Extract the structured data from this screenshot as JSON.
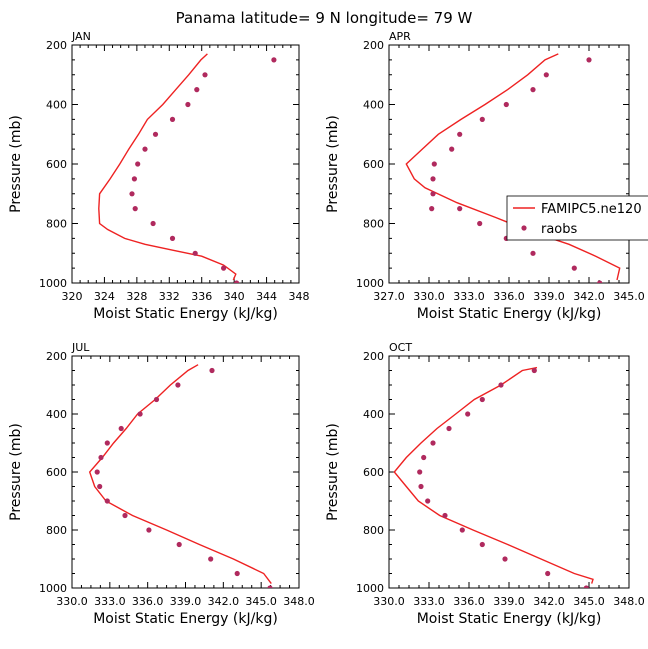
{
  "suptitle": "Panama  latitude= 9 N longitude= 79 W",
  "colors": {
    "model": "#ee2222",
    "obs": "#b02a5e"
  },
  "legend": {
    "model_label": "FAMIPC5.ne120",
    "obs_label": "raobs"
  },
  "chart_data": [
    {
      "type": "line",
      "panel": "JAN",
      "title": "JAN",
      "xlabel": "Moist Static Energy (kJ/kg)",
      "ylabel": "Pressure (mb)",
      "xlim": [
        320,
        348
      ],
      "ylim": [
        1000,
        200
      ],
      "xticks": [
        320,
        324,
        328,
        332,
        336,
        340,
        344,
        348
      ],
      "xtick_labels": [
        "320",
        "324",
        "328",
        "332",
        "336",
        "340",
        "344",
        "348"
      ],
      "yticks": [
        200,
        400,
        600,
        800,
        1000
      ],
      "ytick_labels": [
        "200",
        "400",
        "600",
        "800",
        "1000"
      ],
      "series": [
        {
          "name": "FAMIPC5.ne120",
          "kind": "line",
          "x": [
            336.7,
            335.9,
            334.4,
            332.8,
            331.2,
            329.3,
            328.2,
            327.0,
            325.9,
            324.7,
            323.4,
            323.3,
            323.4,
            324.4,
            326.5,
            329.0,
            332.5,
            336.0,
            338.7,
            340.2,
            339.9
          ],
          "y": [
            230,
            250,
            300,
            350,
            400,
            450,
            500,
            550,
            600,
            650,
            700,
            750,
            800,
            820,
            850,
            870,
            890,
            910,
            940,
            970,
            990
          ]
        },
        {
          "name": "raobs",
          "kind": "scatter",
          "x": [
            344.9,
            336.4,
            335.4,
            334.3,
            332.4,
            330.3,
            329.0,
            328.1,
            327.7,
            327.4,
            327.8,
            330.0,
            332.4,
            335.2,
            338.7,
            340.3
          ],
          "y": [
            250,
            300,
            350,
            400,
            450,
            500,
            550,
            600,
            650,
            700,
            750,
            800,
            850,
            900,
            950,
            1000
          ]
        }
      ]
    },
    {
      "type": "line",
      "panel": "APR",
      "title": "APR",
      "xlabel": "Moist Static Energy (kJ/kg)",
      "ylabel": "Pressure (mb)",
      "xlim": [
        327.0,
        345.0
      ],
      "ylim": [
        1000,
        200
      ],
      "xticks": [
        327.0,
        330.0,
        333.0,
        336.0,
        339.0,
        342.0,
        345.0
      ],
      "xtick_labels": [
        "327.0",
        "330.0",
        "333.0",
        "336.0",
        "339.0",
        "342.0",
        "345.0"
      ],
      "yticks": [
        200,
        400,
        600,
        800,
        1000
      ],
      "ytick_labels": [
        "200",
        "400",
        "600",
        "800",
        "1000"
      ],
      "series": [
        {
          "name": "FAMIPC5.ne120",
          "kind": "line",
          "x": [
            339.7,
            338.7,
            337.4,
            335.9,
            334.2,
            332.4,
            330.7,
            329.5,
            328.3,
            328.9,
            329.7,
            332.1,
            335.0,
            337.8,
            340.5,
            342.5,
            344.3,
            344.1
          ],
          "y": [
            230,
            250,
            300,
            350,
            400,
            450,
            500,
            550,
            600,
            650,
            680,
            730,
            780,
            830,
            870,
            910,
            950,
            990
          ]
        },
        {
          "name": "raobs",
          "kind": "scatter",
          "x": [
            342.0,
            338.8,
            337.8,
            335.8,
            334.0,
            332.3,
            331.7,
            330.4,
            330.3,
            330.3,
            330.2,
            332.3,
            333.8,
            335.8,
            337.8,
            340.9,
            342.8
          ],
          "y": [
            250,
            300,
            350,
            400,
            450,
            500,
            550,
            600,
            650,
            700,
            750,
            750,
            800,
            850,
            900,
            950,
            1000
          ]
        }
      ]
    },
    {
      "type": "line",
      "panel": "JUL",
      "title": "JUL",
      "xlabel": "Moist Static Energy (kJ/kg)",
      "ylabel": "Pressure (mb)",
      "xlim": [
        330.0,
        348.0
      ],
      "ylim": [
        1000,
        200
      ],
      "xticks": [
        330.0,
        333.0,
        336.0,
        339.0,
        342.0,
        345.0,
        348.0
      ],
      "xtick_labels": [
        "330.0",
        "333.0",
        "336.0",
        "339.0",
        "342.0",
        "345.0",
        "348.0"
      ],
      "yticks": [
        200,
        400,
        600,
        800,
        1000
      ],
      "ytick_labels": [
        "200",
        "400",
        "600",
        "800",
        "1000"
      ],
      "series": [
        {
          "name": "FAMIPC5.ne120",
          "kind": "line",
          "x": [
            340.0,
            339.2,
            337.8,
            336.6,
            335.2,
            334.3,
            333.3,
            332.4,
            331.4,
            331.8,
            332.7,
            334.8,
            337.5,
            340.1,
            342.8,
            345.2,
            345.8
          ],
          "y": [
            230,
            250,
            300,
            350,
            400,
            450,
            500,
            550,
            600,
            650,
            700,
            750,
            800,
            850,
            900,
            950,
            985
          ]
        },
        {
          "name": "raobs",
          "kind": "scatter",
          "x": [
            341.1,
            338.4,
            336.7,
            335.4,
            333.9,
            332.8,
            332.3,
            332.0,
            332.2,
            332.8,
            334.2,
            336.1,
            338.5,
            341.0,
            343.1,
            345.7
          ],
          "y": [
            250,
            300,
            350,
            400,
            450,
            500,
            550,
            600,
            650,
            700,
            750,
            800,
            850,
            900,
            950,
            1000
          ]
        }
      ]
    },
    {
      "type": "line",
      "panel": "OCT",
      "title": "OCT",
      "xlabel": "Moist Static Energy (kJ/kg)",
      "ylabel": "Pressure (mb)",
      "xlim": [
        330.0,
        348.0
      ],
      "ylim": [
        1000,
        200
      ],
      "xticks": [
        330.0,
        333.0,
        336.0,
        339.0,
        342.0,
        345.0,
        348.0
      ],
      "xtick_labels": [
        "330.0",
        "333.0",
        "336.0",
        "339.0",
        "342.0",
        "345.0",
        "348.0"
      ],
      "yticks": [
        200,
        400,
        600,
        800,
        1000
      ],
      "ytick_labels": [
        "200",
        "400",
        "600",
        "800",
        "1000"
      ],
      "series": [
        {
          "name": "FAMIPC5.ne120",
          "kind": "line",
          "x": [
            341.1,
            340.0,
            338.4,
            336.4,
            335.0,
            333.6,
            332.4,
            331.3,
            330.4,
            331.3,
            332.2,
            333.8,
            336.3,
            338.9,
            341.4,
            343.9,
            345.3,
            345.2
          ],
          "y": [
            240,
            250,
            300,
            350,
            400,
            450,
            500,
            550,
            600,
            650,
            700,
            750,
            800,
            850,
            900,
            950,
            970,
            985
          ]
        },
        {
          "name": "raobs",
          "kind": "scatter",
          "x": [
            340.9,
            338.4,
            337.0,
            335.9,
            334.5,
            333.3,
            332.6,
            332.3,
            332.4,
            332.9,
            334.2,
            335.5,
            337.0,
            338.7,
            341.9,
            344.8
          ],
          "y": [
            250,
            300,
            350,
            400,
            450,
            500,
            550,
            600,
            650,
            700,
            750,
            800,
            850,
            900,
            950,
            1000
          ]
        }
      ]
    }
  ]
}
